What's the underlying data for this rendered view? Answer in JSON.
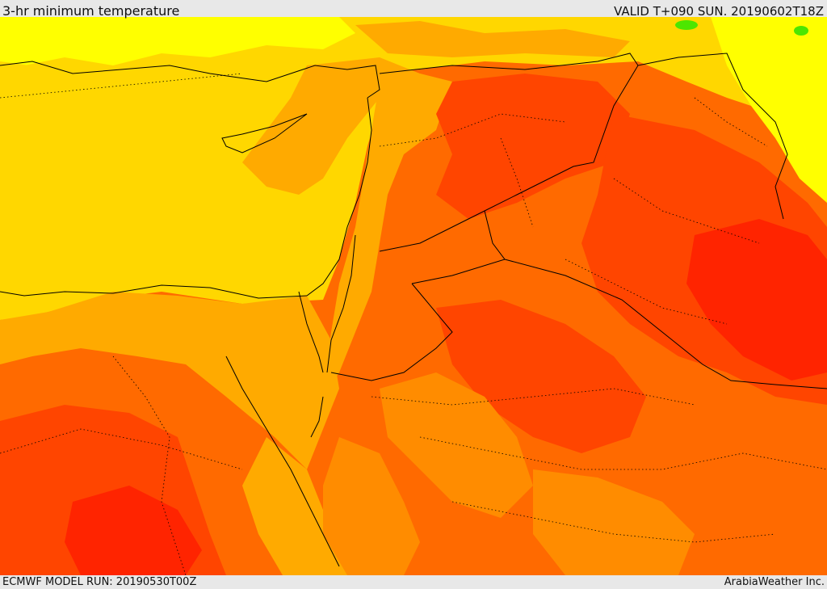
{
  "header": {
    "title": "3-hr minimum temperature",
    "valid": "VALID T+090 SUN. 20190602T18Z"
  },
  "footer": {
    "model_run": "ECMWF MODEL RUN: 20190530T00Z",
    "credit": "ArabiaWeather Inc."
  },
  "palette": {
    "yellow_bright": "#ffff00",
    "yellow": "#ffd700",
    "gold": "#ffaa00",
    "orange": "#ff8c00",
    "orange_deep": "#ff6a00",
    "red_orange": "#ff4500",
    "red": "#ff2400",
    "green_spot": "#4ce600",
    "border": "#000000"
  }
}
